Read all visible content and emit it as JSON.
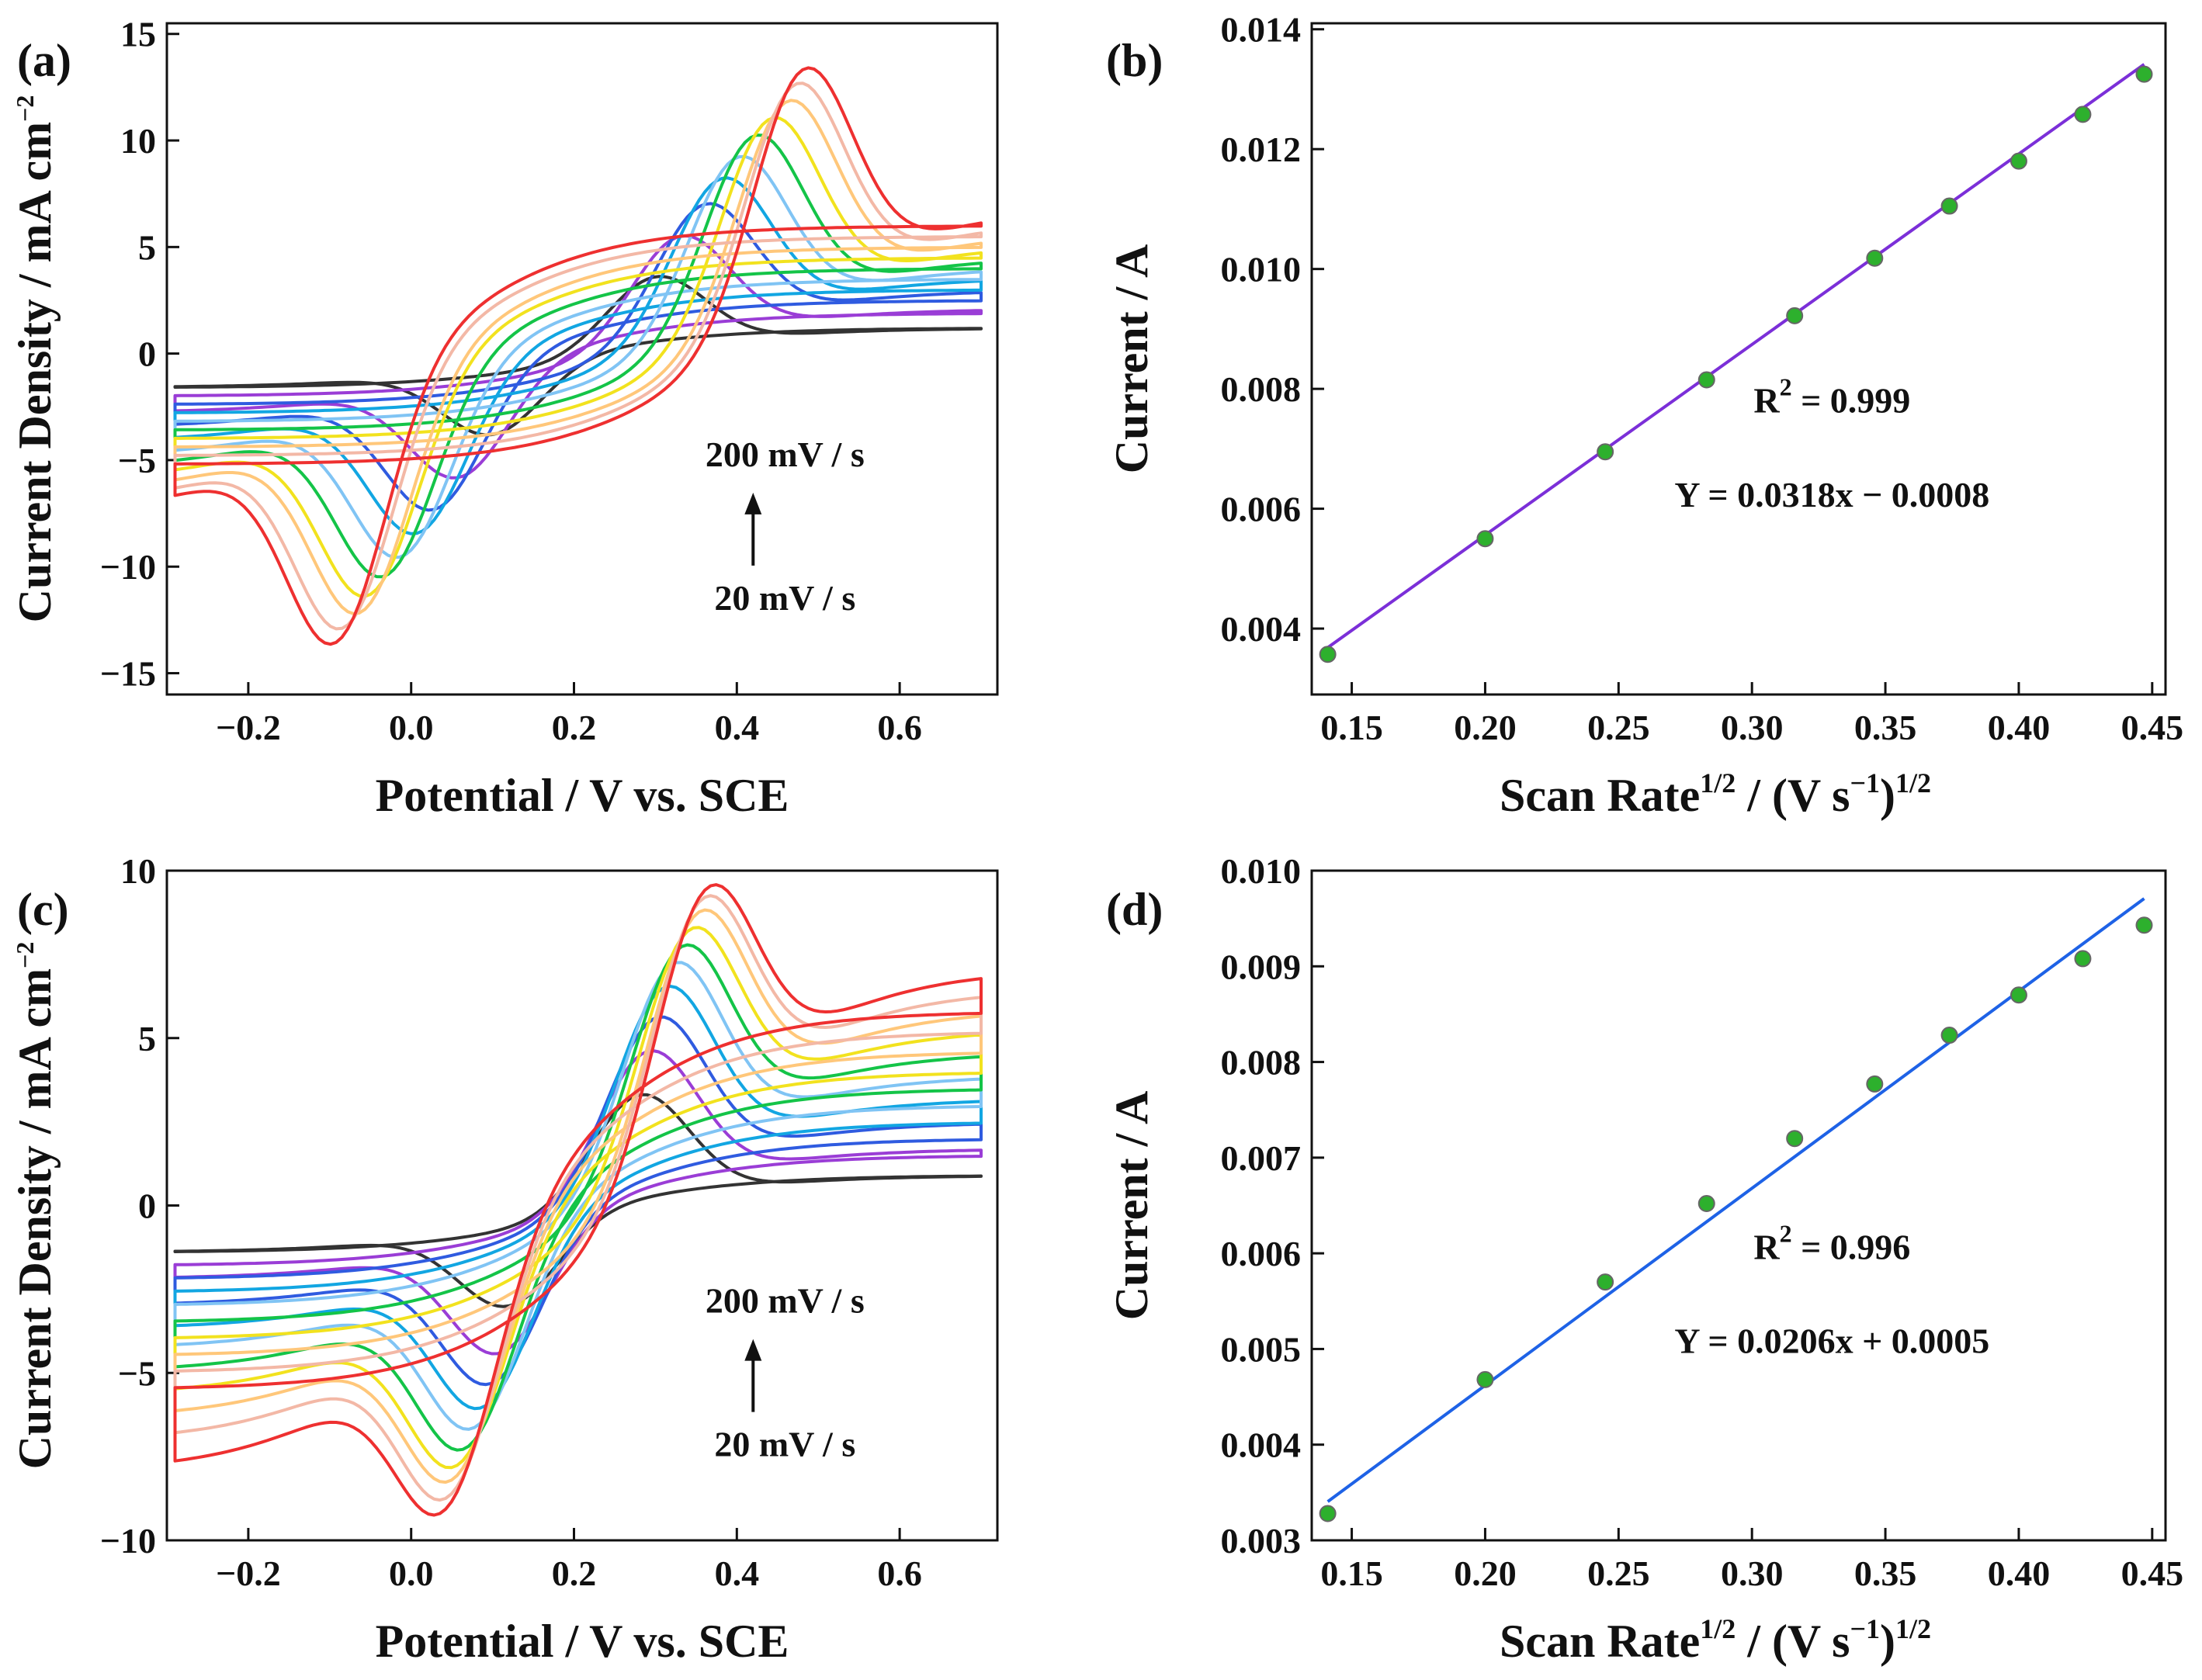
{
  "colors": {
    "cv_series": [
      "#333333",
      "#9A3DD6",
      "#2F5BE0",
      "#12A6E2",
      "#80C4F4",
      "#14C448",
      "#F2E21E",
      "#FFC77A",
      "#F3B8A6",
      "#EE3030"
    ],
    "fit_line_b": "#7B2FD8",
    "fit_line_d": "#1E62E6",
    "marker": "#2DB02D"
  },
  "chart_data": [
    {
      "panel": "(a)",
      "type": "line",
      "xlabel": "Potential / V vs. SCE",
      "ylabel": "Current Density / mA cm",
      "ylabel_sup": "−2",
      "xlim": [
        -0.3,
        0.72
      ],
      "ylim": [
        -16,
        15.5
      ],
      "xticks": [
        -0.2,
        0.0,
        0.2,
        0.4,
        0.6
      ],
      "xtick_labels": [
        "−0.2",
        "0.0",
        "0.2",
        "0.4",
        "0.6"
      ],
      "yticks": [
        -15,
        -10,
        -5,
        0,
        5,
        10,
        15
      ],
      "ytick_labels": [
        "−15",
        "−10",
        "−5",
        "0",
        "5",
        "10",
        "15"
      ],
      "annotation_top": "200 mV / s",
      "annotation_bottom": "20 mV / s",
      "series": [
        {
          "color_index": 0,
          "start_anodic": -1.6,
          "ipa": 3.6,
          "epa": 0.3,
          "end_anodic": 1.2,
          "end_cathodic": 1.2,
          "ipc": -3.8,
          "epc": 0.1,
          "start_cathodic": -1.6
        },
        {
          "color_index": 1,
          "start_anodic": -2.0,
          "ipa": 5.5,
          "epa": 0.33,
          "end_anodic": 2.1,
          "end_cathodic": 1.9,
          "ipc": -5.8,
          "epc": 0.06,
          "start_cathodic": -2.8
        },
        {
          "color_index": 2,
          "start_anodic": -2.4,
          "ipa": 7.0,
          "epa": 0.36,
          "end_anodic": 3.0,
          "end_cathodic": 2.5,
          "ipc": -7.3,
          "epc": 0.03,
          "start_cathodic": -3.5
        },
        {
          "color_index": 3,
          "start_anodic": -2.8,
          "ipa": 8.2,
          "epa": 0.38,
          "end_anodic": 3.6,
          "end_cathodic": 3.0,
          "ipc": -8.4,
          "epc": 0.01,
          "start_cathodic": -4.2
        },
        {
          "color_index": 4,
          "start_anodic": -3.2,
          "ipa": 9.2,
          "epa": 0.4,
          "end_anodic": 4.1,
          "end_cathodic": 3.5,
          "ipc": -9.5,
          "epc": -0.01,
          "start_cathodic": -4.9
        },
        {
          "color_index": 5,
          "start_anodic": -3.6,
          "ipa": 10.2,
          "epa": 0.42,
          "end_anodic": 4.6,
          "end_cathodic": 4.0,
          "ipc": -10.4,
          "epc": -0.03,
          "start_cathodic": -5.5
        },
        {
          "color_index": 6,
          "start_anodic": -4.0,
          "ipa": 11.0,
          "epa": 0.44,
          "end_anodic": 5.2,
          "end_cathodic": 4.5,
          "ipc": -11.3,
          "epc": -0.05,
          "start_cathodic": -6.1
        },
        {
          "color_index": 7,
          "start_anodic": -4.4,
          "ipa": 11.8,
          "epa": 0.46,
          "end_anodic": 5.8,
          "end_cathodic": 5.0,
          "ipc": -12.1,
          "epc": -0.06,
          "start_cathodic": -6.7
        },
        {
          "color_index": 8,
          "start_anodic": -4.8,
          "ipa": 12.6,
          "epa": 0.47,
          "end_anodic": 6.4,
          "end_cathodic": 5.5,
          "ipc": -12.8,
          "epc": -0.08,
          "start_cathodic": -7.3
        },
        {
          "color_index": 9,
          "start_anodic": -5.2,
          "ipa": 13.3,
          "epa": 0.48,
          "end_anodic": 7.0,
          "end_cathodic": 6.0,
          "ipc": -13.5,
          "epc": -0.09,
          "start_cathodic": -7.8
        }
      ]
    },
    {
      "panel": "(b)",
      "type": "scatter",
      "xlabel": "Scan Rate",
      "xlabel_sup": "1/2",
      "xlabel_tail": " / (V s",
      "xlabel_sup2": "−1",
      "xlabel_tail2": ")",
      "xlabel_sup3": "1/2",
      "ylabel": "Current / A",
      "xlim": [
        0.135,
        0.455
      ],
      "ylim": [
        0.0029,
        0.0141
      ],
      "xticks": [
        0.15,
        0.2,
        0.25,
        0.3,
        0.35,
        0.4,
        0.45
      ],
      "xtick_labels": [
        "0.15",
        "0.20",
        "0.25",
        "0.30",
        "0.35",
        "0.40",
        "0.45"
      ],
      "yticks": [
        0.004,
        0.006,
        0.008,
        0.01,
        0.012,
        0.014
      ],
      "ytick_labels": [
        "0.004",
        "0.006",
        "0.008",
        "0.010",
        "0.012",
        "0.014"
      ],
      "x": [
        0.141,
        0.2,
        0.245,
        0.283,
        0.316,
        0.346,
        0.374,
        0.4,
        0.424,
        0.447
      ],
      "y": [
        0.00357,
        0.0055,
        0.00695,
        0.00815,
        0.00922,
        0.01018,
        0.01105,
        0.0118,
        0.01258,
        0.01325
      ],
      "fit": {
        "slope": 0.0318,
        "intercept": -0.0008,
        "x_range": [
          0.141,
          0.447
        ]
      },
      "r2_label": "R",
      "r2_sup": "2",
      "r2_value": " = 0.999",
      "equation": "Y = 0.0318x − 0.0008"
    },
    {
      "panel": "(c)",
      "type": "line",
      "xlabel": "Potential / V vs. SCE",
      "ylabel": "Current Density / mA cm",
      "ylabel_sup": "−2",
      "xlim": [
        -0.3,
        0.72
      ],
      "ylim": [
        -10,
        10
      ],
      "xticks": [
        -0.2,
        0.0,
        0.2,
        0.4,
        0.6
      ],
      "xtick_labels": [
        "−0.2",
        "0.0",
        "0.2",
        "0.4",
        "0.6"
      ],
      "yticks": [
        -10,
        -5,
        0,
        5,
        10
      ],
      "ytick_labels": [
        "−10",
        "−5",
        "0",
        "5",
        "10"
      ],
      "annotation_top": "200 mV / s",
      "annotation_bottom": "20 mV / s",
      "series": [
        {
          "color_index": 0,
          "start_anodic": -1.4,
          "ipa": 3.3,
          "epa": 0.28,
          "end_anodic": 0.9,
          "end_cathodic": 0.9,
          "ipc": -3.0,
          "epc": 0.12,
          "start_cathodic": -1.4
        },
        {
          "color_index": 1,
          "start_anodic": -1.8,
          "ipa": 4.6,
          "epa": 0.29,
          "end_anodic": 1.7,
          "end_cathodic": 1.5,
          "ipc": -4.4,
          "epc": 0.11,
          "start_cathodic": -2.2
        },
        {
          "color_index": 2,
          "start_anodic": -2.2,
          "ipa": 5.6,
          "epa": 0.3,
          "end_anodic": 2.5,
          "end_cathodic": 2.0,
          "ipc": -5.3,
          "epc": 0.1,
          "start_cathodic": -3.0
        },
        {
          "color_index": 3,
          "start_anodic": -2.6,
          "ipa": 6.5,
          "epa": 0.31,
          "end_anodic": 3.2,
          "end_cathodic": 2.5,
          "ipc": -6.0,
          "epc": 0.09,
          "start_cathodic": -3.7
        },
        {
          "color_index": 4,
          "start_anodic": -3.0,
          "ipa": 7.2,
          "epa": 0.32,
          "end_anodic": 3.9,
          "end_cathodic": 3.0,
          "ipc": -6.6,
          "epc": 0.08,
          "start_cathodic": -4.3
        },
        {
          "color_index": 5,
          "start_anodic": -3.5,
          "ipa": 7.7,
          "epa": 0.33,
          "end_anodic": 4.6,
          "end_cathodic": 3.5,
          "ipc": -7.2,
          "epc": 0.07,
          "start_cathodic": -5.0
        },
        {
          "color_index": 6,
          "start_anodic": -4.0,
          "ipa": 8.2,
          "epa": 0.34,
          "end_anodic": 5.3,
          "end_cathodic": 4.0,
          "ipc": -7.7,
          "epc": 0.06,
          "start_cathodic": -5.7
        },
        {
          "color_index": 7,
          "start_anodic": -4.5,
          "ipa": 8.7,
          "epa": 0.35,
          "end_anodic": 5.9,
          "end_cathodic": 4.6,
          "ipc": -8.1,
          "epc": 0.055,
          "start_cathodic": -6.4
        },
        {
          "color_index": 8,
          "start_anodic": -5.0,
          "ipa": 9.1,
          "epa": 0.355,
          "end_anodic": 6.5,
          "end_cathodic": 5.2,
          "ipc": -8.6,
          "epc": 0.05,
          "start_cathodic": -7.1
        },
        {
          "color_index": 9,
          "start_anodic": -5.5,
          "ipa": 9.4,
          "epa": 0.36,
          "end_anodic": 7.1,
          "end_cathodic": 5.8,
          "ipc": -9.0,
          "epc": 0.045,
          "start_cathodic": -8.0
        }
      ]
    },
    {
      "panel": "(d)",
      "type": "scatter",
      "xlabel": "Scan Rate",
      "xlabel_sup": "1/2",
      "xlabel_tail": " / (V s",
      "xlabel_sup2": "−1",
      "xlabel_tail2": ")",
      "xlabel_sup3": "1/2",
      "ylabel": "Current / A",
      "xlim": [
        0.135,
        0.455
      ],
      "ylim": [
        0.003,
        0.01
      ],
      "xticks": [
        0.15,
        0.2,
        0.25,
        0.3,
        0.35,
        0.4,
        0.45
      ],
      "xtick_labels": [
        "0.15",
        "0.20",
        "0.25",
        "0.30",
        "0.35",
        "0.40",
        "0.45"
      ],
      "yticks": [
        0.003,
        0.004,
        0.005,
        0.006,
        0.007,
        0.008,
        0.009,
        0.01
      ],
      "ytick_labels": [
        "0.003",
        "0.004",
        "0.005",
        "0.006",
        "0.007",
        "0.008",
        "0.009",
        "0.010"
      ],
      "x": [
        0.141,
        0.2,
        0.245,
        0.283,
        0.316,
        0.346,
        0.374,
        0.4,
        0.424,
        0.447
      ],
      "y": [
        0.00328,
        0.00468,
        0.0057,
        0.00652,
        0.0072,
        0.00777,
        0.00828,
        0.0087,
        0.00908,
        0.00943
      ],
      "fit": {
        "slope": 0.0206,
        "intercept": 0.0005,
        "x_range": [
          0.141,
          0.447
        ]
      },
      "r2_label": "R",
      "r2_sup": "2",
      "r2_value": " = 0.996",
      "equation": "Y = 0.0206x + 0.0005"
    }
  ]
}
